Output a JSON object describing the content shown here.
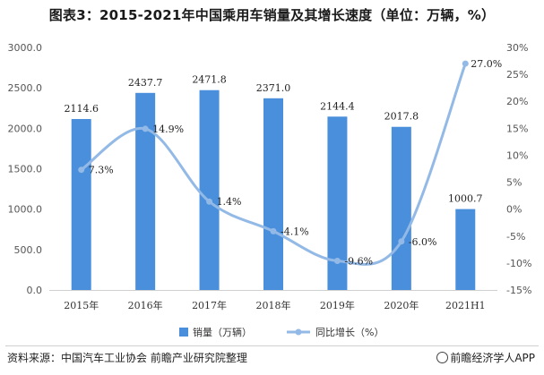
{
  "title": "图表3：2015-2021年中国乘用车销量及其增长速度（单位：万辆，%）",
  "source": "资料来源：中国汽车工业协会 前瞻产业研究院整理",
  "brand": "前瞻经济学人APP",
  "colors": {
    "bar": "#4a8fdc",
    "line": "#93b9e6"
  },
  "chart_data": {
    "type": "bar+line",
    "categories": [
      "2015年",
      "2016年",
      "2017年",
      "2018年",
      "2019年",
      "2020年",
      "2021H1"
    ],
    "series": [
      {
        "name": "销量（万辆）",
        "type": "bar",
        "axis": "left",
        "values": [
          2114.6,
          2437.7,
          2471.8,
          2371.0,
          2144.4,
          2017.8,
          1000.7
        ],
        "labels": [
          "2114.6",
          "2437.7",
          "2471.8",
          "2371.0",
          "2144.4",
          "2017.8",
          "1000.7"
        ]
      },
      {
        "name": "同比增长（%）",
        "type": "line",
        "axis": "right",
        "values": [
          7.3,
          14.9,
          1.4,
          -4.1,
          -9.6,
          -6.0,
          27.0
        ],
        "labels": [
          "7.3%",
          "14.9%",
          "1.4%",
          "-4.1%",
          "-9.6%",
          "-6.0%",
          "27.0%"
        ]
      }
    ],
    "left_axis": {
      "ylim": [
        0,
        3000
      ],
      "ticks": [
        0,
        500,
        1000,
        1500,
        2000,
        2500,
        3000
      ],
      "tick_labels": [
        "0.0",
        "500.0",
        "1000.0",
        "1500.0",
        "2000.0",
        "2500.0",
        "3000.0"
      ]
    },
    "right_axis": {
      "ylim": [
        -15,
        30
      ],
      "ticks": [
        -15,
        -10,
        -5,
        0,
        5,
        10,
        15,
        20,
        25,
        30
      ],
      "tick_labels": [
        "-15%",
        "-10%",
        "-5%",
        "0%",
        "5%",
        "10%",
        "15%",
        "20%",
        "25%",
        "30%"
      ]
    },
    "grid": false,
    "legend_position": "bottom"
  }
}
